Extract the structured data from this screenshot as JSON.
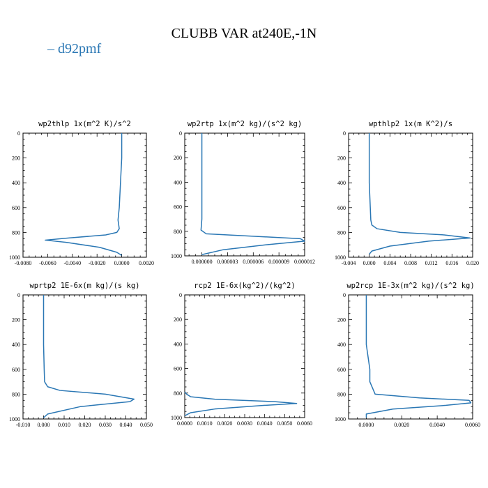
{
  "figure": {
    "title": "CLUBB VAR at240E,-1N",
    "legend": [
      {
        "label": "– d92pmf",
        "color": "#2a77b4"
      }
    ]
  },
  "chart_data": [
    {
      "type": "line",
      "title": "wp2thlp  1x(m^2 K)/s^2",
      "xlim": [
        -0.008,
        0.002
      ],
      "ylim": [
        1000,
        0
      ],
      "xticks": [
        -0.008,
        -0.006,
        -0.004,
        -0.002,
        0,
        0.002
      ],
      "xtick_labels": [
        "-0.0080",
        "-0.0060",
        "-0.0040",
        "-0.0020",
        "0.0000",
        "0.0020"
      ],
      "yticks": [
        0,
        200,
        400,
        600,
        800,
        1000
      ],
      "ytick_labels": [
        "0",
        "200",
        "400",
        "600",
        "800",
        "1000"
      ],
      "grid": false,
      "series": [
        {
          "color": "#2a77b4",
          "x": [
            0,
            0,
            -0.0001,
            -0.0002,
            -0.0003,
            -0.0002,
            -0.0004,
            -0.0013,
            -0.0043,
            -0.0062,
            -0.0045,
            -0.0018,
            -0.0004,
            0
          ],
          "y": [
            0,
            200,
            400,
            600,
            700,
            770,
            800,
            820,
            845,
            862,
            880,
            920,
            960,
            985
          ]
        }
      ]
    },
    {
      "type": "line",
      "title": "wp2rtp  1x(m^2 kg)/(s^2 kg)",
      "xlim": [
        -2e-06,
        1.2e-05
      ],
      "ylim": [
        1000,
        0
      ],
      "xticks": [
        0,
        3e-06,
        6e-06,
        9e-06,
        1.2e-05
      ],
      "xtick_labels": [
        "0.000000",
        "0.000003",
        "0.000006",
        "0.000009",
        "0.000012"
      ],
      "yticks": [
        0,
        200,
        400,
        600,
        800,
        1000
      ],
      "ytick_labels": [
        "0",
        "200",
        "400",
        "600",
        "800",
        "1000"
      ],
      "grid": false,
      "series": [
        {
          "color": "#2a77b4",
          "x": [
            0,
            0,
            0,
            0,
            0,
            -1e-07,
            5e-07,
            6e-06,
            1.15e-05,
            1.2e-05,
            7.5e-06,
            2.5e-06,
            0
          ],
          "y": [
            0,
            200,
            400,
            600,
            700,
            790,
            820,
            840,
            860,
            880,
            910,
            950,
            990
          ]
        }
      ]
    },
    {
      "type": "line",
      "title": "wpthlp2  1x(m K^2)/s",
      "xlim": [
        -0.004,
        0.02
      ],
      "ylim": [
        1000,
        0
      ],
      "xticks": [
        -0.004,
        0,
        0.004,
        0.008,
        0.012,
        0.016,
        0.02
      ],
      "xtick_labels": [
        "-0.004",
        "0.000",
        "0.004",
        "0.008",
        "0.012",
        "0.016",
        "0.020"
      ],
      "yticks": [
        0,
        200,
        400,
        600,
        800,
        1000
      ],
      "ytick_labels": [
        "0",
        "200",
        "400",
        "600",
        "800",
        "1000"
      ],
      "grid": false,
      "series": [
        {
          "color": "#2a77b4",
          "x": [
            0,
            0,
            0,
            0.0002,
            0.0003,
            0.0005,
            0.0015,
            0.006,
            0.0145,
            0.0195,
            0.0115,
            0.004,
            0.0005,
            0
          ],
          "y": [
            0,
            200,
            400,
            600,
            700,
            740,
            770,
            800,
            820,
            845,
            870,
            910,
            950,
            975
          ]
        }
      ]
    },
    {
      "type": "line",
      "title": "wprtp2  1E-6x(m kg)/(s kg)",
      "xlim": [
        -0.01,
        0.05
      ],
      "ylim": [
        1000,
        0
      ],
      "xticks": [
        -0.01,
        0,
        0.01,
        0.02,
        0.03,
        0.04,
        0.05
      ],
      "xtick_labels": [
        "-0.010",
        "0.000",
        "0.010",
        "0.020",
        "0.030",
        "0.040",
        "0.050"
      ],
      "yticks": [
        0,
        200,
        400,
        600,
        800,
        1000
      ],
      "ytick_labels": [
        "0",
        "200",
        "400",
        "600",
        "800",
        "1000"
      ],
      "grid": false,
      "series": [
        {
          "color": "#2a77b4",
          "x": [
            0,
            0,
            0,
            0.0003,
            0.0005,
            0.002,
            0.008,
            0.03,
            0.044,
            0.042,
            0.018,
            0.002,
            0
          ],
          "y": [
            0,
            200,
            400,
            600,
            700,
            740,
            770,
            800,
            840,
            860,
            900,
            960,
            990
          ]
        }
      ]
    },
    {
      "type": "line",
      "title": "rcp2  1E-6x(kg^2)/(kg^2)",
      "xlim": [
        0,
        0.006
      ],
      "ylim": [
        1000,
        0
      ],
      "xticks": [
        0,
        0.001,
        0.002,
        0.003,
        0.004,
        0.005,
        0.006
      ],
      "xtick_labels": [
        "0.0000",
        "0.0010",
        "0.0020",
        "0.0030",
        "0.0040",
        "0.0050",
        "0.0060"
      ],
      "yticks": [
        0,
        200,
        400,
        600,
        800,
        1000
      ],
      "ytick_labels": [
        "0",
        "200",
        "400",
        "600",
        "800",
        "1000"
      ],
      "grid": false,
      "series": [
        {
          "color": "#2a77b4",
          "x": [
            0,
            0.0001,
            0.0003,
            0.0015,
            0.0045,
            0.0056,
            0.004,
            0.0015,
            0.0003,
            0
          ],
          "y": [
            790,
            810,
            830,
            850,
            870,
            885,
            900,
            930,
            960,
            985
          ]
        }
      ]
    },
    {
      "type": "line",
      "title": "wp2rcp  1E-3x(m^2 kg)/(s^2 kg)",
      "xlim": [
        -0.001,
        0.006
      ],
      "ylim": [
        1000,
        0
      ],
      "xticks": [
        0,
        0.002,
        0.004,
        0.006
      ],
      "xtick_labels": [
        "0.0000",
        "0.0020",
        "0.0040",
        "0.0060"
      ],
      "yticks": [
        0,
        200,
        400,
        600,
        800,
        1000
      ],
      "ytick_labels": [
        "0",
        "200",
        "400",
        "600",
        "800",
        "1000"
      ],
      "grid": false,
      "series": [
        {
          "color": "#2a77b4",
          "x": [
            0,
            0,
            0,
            0.0001,
            0.0002,
            0.0002,
            0.0005,
            0.003,
            0.0058,
            0.0059,
            0.0045,
            0.0015,
            0,
            0
          ],
          "y": [
            0,
            200,
            400,
            500,
            600,
            700,
            800,
            830,
            850,
            870,
            890,
            920,
            960,
            990
          ]
        }
      ]
    }
  ]
}
